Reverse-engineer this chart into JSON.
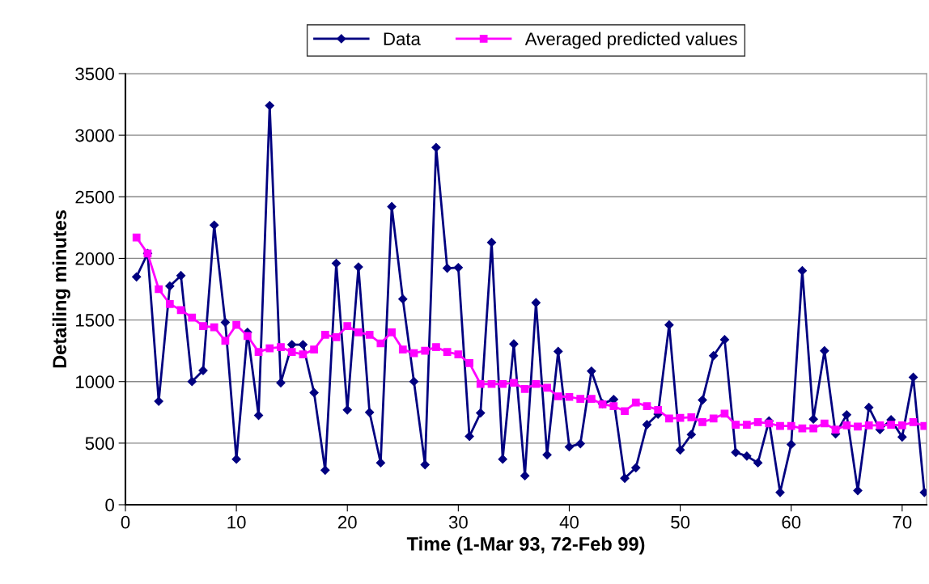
{
  "chart_data": {
    "type": "line",
    "xlabel": "Time (1-Mar 93, 72-Feb 99)",
    "ylabel": "Detailing minutes",
    "xlim": [
      0,
      72.2
    ],
    "xticks": [
      0,
      10,
      20,
      30,
      40,
      50,
      60,
      70
    ],
    "ylim": [
      0,
      3500
    ],
    "yticks": [
      0,
      500,
      1000,
      1500,
      2000,
      2500,
      3000,
      3500
    ],
    "grid": "y",
    "legend": "top",
    "line_style": "solid",
    "x": [
      1,
      2,
      3,
      4,
      5,
      6,
      7,
      8,
      9,
      10,
      11,
      12,
      13,
      14,
      15,
      16,
      17,
      18,
      19,
      20,
      21,
      22,
      23,
      24,
      25,
      26,
      27,
      28,
      29,
      30,
      31,
      32,
      33,
      34,
      35,
      36,
      37,
      38,
      39,
      40,
      41,
      42,
      43,
      44,
      45,
      46,
      47,
      48,
      49,
      50,
      51,
      52,
      53,
      54,
      55,
      56,
      57,
      58,
      59,
      60,
      61,
      62,
      63,
      64,
      65,
      66,
      67,
      68,
      69,
      70,
      71,
      72
    ],
    "series": [
      {
        "name": "Data",
        "color": "#000080",
        "marker": "diamond",
        "values": [
          1850,
          2040,
          840,
          1775,
          1860,
          1000,
          1090,
          2270,
          1480,
          370,
          1400,
          725,
          3240,
          990,
          1300,
          1300,
          910,
          280,
          1960,
          770,
          1930,
          750,
          340,
          2420,
          1670,
          1000,
          325,
          2900,
          1920,
          1925,
          555,
          745,
          2130,
          370,
          1305,
          235,
          1640,
          405,
          1245,
          470,
          495,
          1085,
          820,
          855,
          215,
          300,
          650,
          735,
          1460,
          445,
          570,
          850,
          1210,
          1340,
          425,
          395,
          340,
          680,
          100,
          490,
          1900,
          695,
          1250,
          575,
          730,
          115,
          790,
          610,
          690,
          550,
          1035,
          100
        ]
      },
      {
        "name": "Averaged predicted values",
        "color": "#ff00ff",
        "marker": "square",
        "values": [
          2170,
          2040,
          1750,
          1630,
          1580,
          1520,
          1450,
          1440,
          1330,
          1460,
          1370,
          1240,
          1270,
          1280,
          1240,
          1220,
          1260,
          1380,
          1360,
          1450,
          1400,
          1380,
          1310,
          1400,
          1260,
          1230,
          1250,
          1280,
          1240,
          1220,
          1150,
          980,
          980,
          980,
          990,
          940,
          980,
          950,
          880,
          875,
          860,
          860,
          815,
          800,
          760,
          830,
          800,
          770,
          700,
          705,
          710,
          670,
          700,
          740,
          650,
          650,
          670,
          660,
          640,
          640,
          620,
          620,
          660,
          610,
          645,
          635,
          645,
          645,
          650,
          645,
          670,
          640
        ]
      }
    ]
  }
}
